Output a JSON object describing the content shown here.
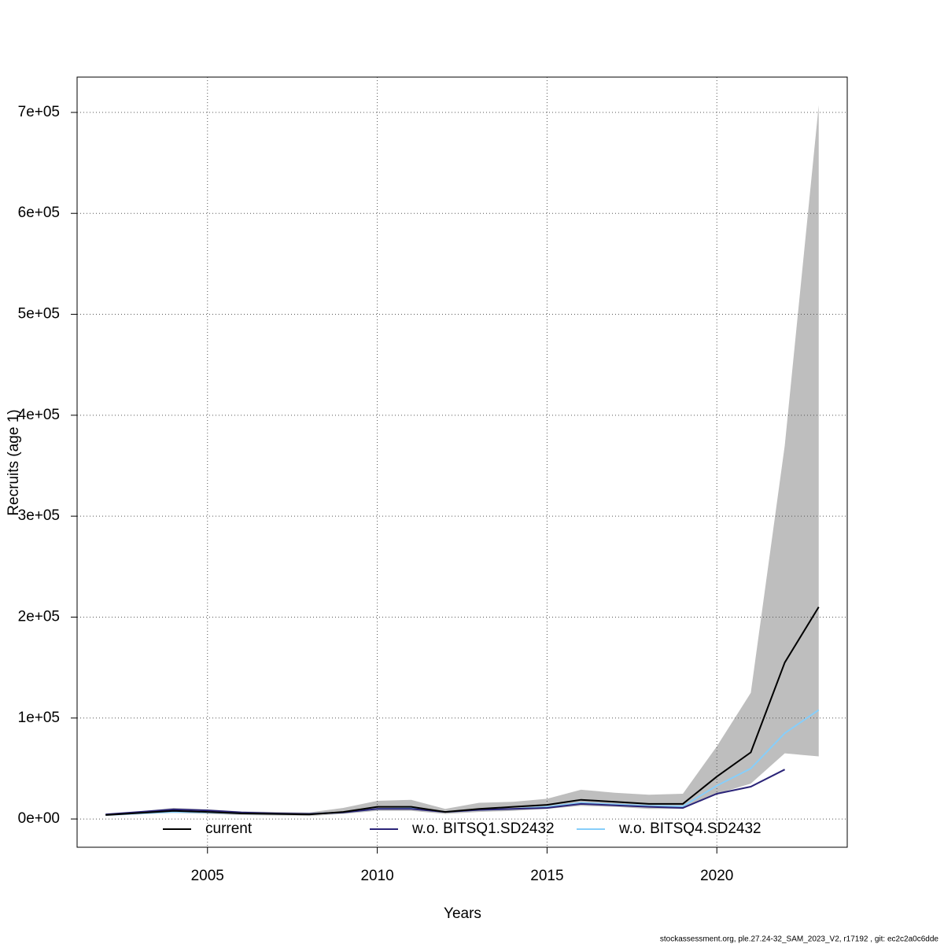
{
  "chart_data": {
    "type": "line",
    "x_label": "Years",
    "y_label": "Recruits (age 1)",
    "footer": "stockassessment.org, ple.27.24-32_SAM_2023_V2, r17192 , git: ec2c2a0c6dde",
    "x": [
      2002,
      2003,
      2004,
      2005,
      2006,
      2007,
      2008,
      2009,
      2010,
      2011,
      2012,
      2013,
      2014,
      2015,
      2016,
      2017,
      2018,
      2019,
      2020,
      2021,
      2022,
      2023
    ],
    "xlim": [
      2001.16,
      2023.84
    ],
    "xticks": [
      2005,
      2010,
      2015,
      2020
    ],
    "ylim": [
      -28000,
      735000
    ],
    "yticks": [
      {
        "value": 0,
        "label": "0e+00"
      },
      {
        "value": 100000,
        "label": "1e+05"
      },
      {
        "value": 200000,
        "label": "2e+05"
      },
      {
        "value": 300000,
        "label": "3e+05"
      },
      {
        "value": 400000,
        "label": "4e+05"
      },
      {
        "value": 500000,
        "label": "5e+05"
      },
      {
        "value": 600000,
        "label": "6e+05"
      },
      {
        "value": 700000,
        "label": "7e+05"
      }
    ],
    "grid": true,
    "legend_position": "bottom",
    "band_color": "#bebebe",
    "series": [
      {
        "name": "current",
        "color": "#000000",
        "values": [
          4000,
          6000,
          8000,
          7000,
          5500,
          5000,
          4500,
          7000,
          12000,
          12000,
          7000,
          10000,
          12000,
          14000,
          19000,
          17000,
          15000,
          15000,
          42000,
          66000,
          155000,
          210000
        ],
        "upper": [
          5000,
          7500,
          11000,
          9500,
          7500,
          7000,
          6500,
          11000,
          18000,
          19000,
          10000,
          16000,
          17000,
          20000,
          29000,
          26000,
          24000,
          25000,
          72000,
          125000,
          370000,
          707000
        ],
        "lower": [
          3000,
          4500,
          6000,
          5000,
          4000,
          3500,
          3000,
          5000,
          8000,
          8000,
          5000,
          7000,
          8000,
          10000,
          13000,
          12000,
          10000,
          10000,
          25000,
          35000,
          65000,
          62000
        ]
      },
      {
        "name": "w.o. BITSQ1.SD2432",
        "color": "#2b2478",
        "values": [
          4500,
          7000,
          9500,
          8500,
          6500,
          5500,
          5000,
          6500,
          10000,
          10000,
          7000,
          9000,
          10000,
          11000,
          15000,
          13500,
          12000,
          11000,
          25000,
          32000,
          49000,
          null
        ]
      },
      {
        "name": "w.o. BITSQ4.SD2432",
        "color": "#87cefa",
        "values": [
          4000,
          5500,
          7000,
          6500,
          5500,
          5000,
          5000,
          6500,
          10000,
          10500,
          7000,
          9000,
          10000,
          12000,
          16000,
          14500,
          13000,
          12500,
          33000,
          50000,
          85000,
          108000
        ]
      }
    ]
  }
}
